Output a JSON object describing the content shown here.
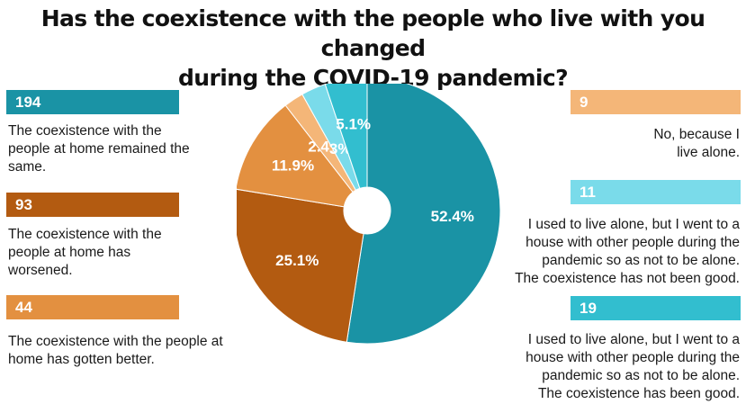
{
  "title": {
    "line1": "Has the coexistence with the people who live with you changed",
    "line2": "during the COVID-19 pandemic?"
  },
  "colors": {
    "teal": "#1a93a5",
    "dark_orange": "#b35b11",
    "orange": "#e39040",
    "light_orange": "#f4b678",
    "light_cyan": "#7adbea",
    "cyan": "#32becf"
  },
  "categories": [
    {
      "count": "194",
      "description": "The coexistence with the people at home remained the same."
    },
    {
      "count": "93",
      "description": "The coexistence with the people at home has worsened."
    },
    {
      "count": "44",
      "description": "The coexistence with the people at home has gotten better."
    },
    {
      "count": "9",
      "description": "No, because I live alone."
    },
    {
      "count": "11",
      "description": "I used to live alone, but I went to a house with other people during the pandemic so as not to be alone. The coexistence has not been good."
    },
    {
      "count": "19",
      "description": "I used to live alone, but I went to a house with other people during the pandemic so as not to be alone. The coexistence has been good."
    }
  ],
  "chart_data": {
    "type": "pie",
    "donut": true,
    "title": "Has the coexistence with the people who live with you changed during the COVID-19 pandemic?",
    "slices": [
      {
        "count": 194,
        "percent": 52.4,
        "label": "52.4%",
        "color": "#1a93a5"
      },
      {
        "count": 93,
        "percent": 25.1,
        "label": "25.1%",
        "color": "#b35b11"
      },
      {
        "count": 44,
        "percent": 11.9,
        "label": "11.9%",
        "color": "#e39040"
      },
      {
        "count": 9,
        "percent": 2.4,
        "label": "2.4%",
        "color": "#f4b678"
      },
      {
        "count": 11,
        "percent": 3.0,
        "label": "3%",
        "color": "#7adbea"
      },
      {
        "count": 19,
        "percent": 5.1,
        "label": "5.1%",
        "color": "#32becf"
      }
    ]
  }
}
